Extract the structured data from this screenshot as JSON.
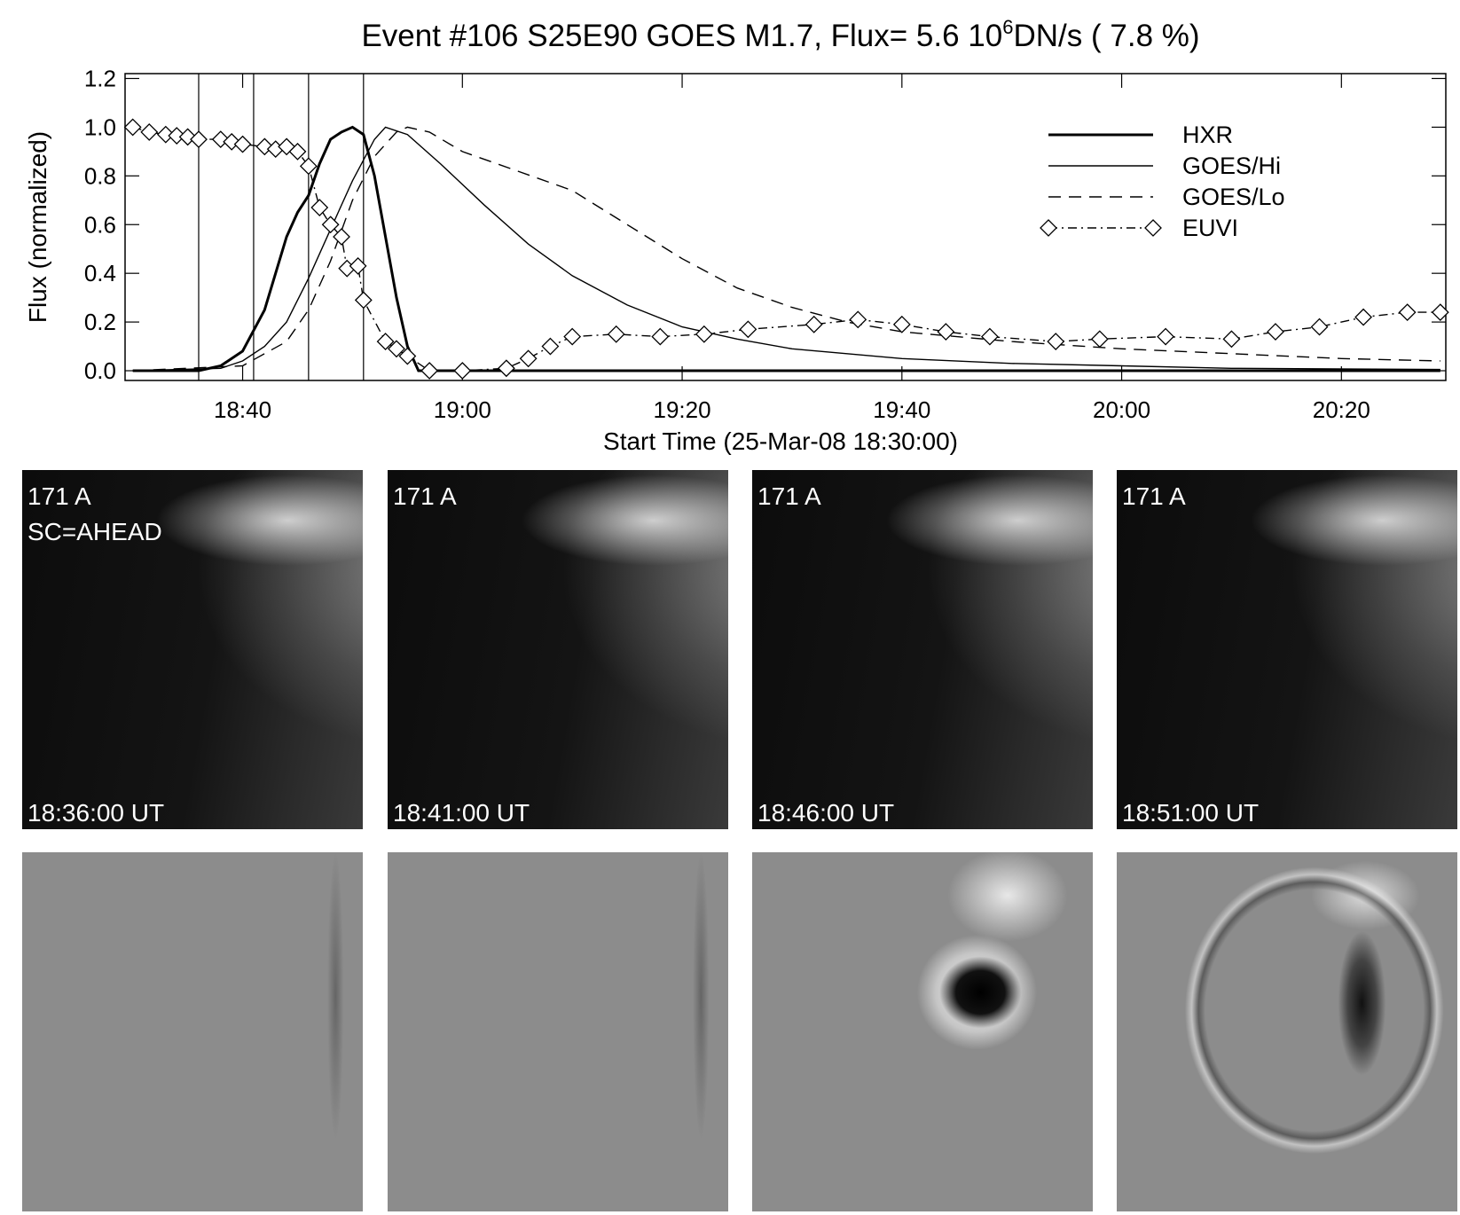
{
  "chart_data": {
    "type": "line",
    "title": {
      "main": "Event #106 S25E90 GOES M1.7, Flux=  5.6 10",
      "superscript": "6",
      "rest": "DN/s (  7.8 %)"
    },
    "x_label": "Start Time (25-Mar-08 18:30:00)",
    "y_label": "Flux (normalized)",
    "xlim": [
      -0.7,
      119.5
    ],
    "ylim": [
      -0.04,
      1.22
    ],
    "xticks": [
      {
        "value": 10,
        "label": "18:40"
      },
      {
        "value": 30,
        "label": "19:00"
      },
      {
        "value": 50,
        "label": "19:20"
      },
      {
        "value": 70,
        "label": "19:40"
      },
      {
        "value": 90,
        "label": "20:00"
      },
      {
        "value": 110,
        "label": "20:20"
      }
    ],
    "yticks": [
      {
        "value": 0,
        "label": "0.0"
      },
      0.2,
      0.4,
      0.6,
      0.8,
      {
        "value": 1,
        "label": "1.0"
      },
      1.2
    ],
    "markers": [
      6,
      11,
      16,
      21
    ],
    "legend": "upper right",
    "series": [
      {
        "name": "HXR",
        "color": "#000000",
        "style": "thick",
        "x": [
          0,
          6,
          8,
          10,
          12,
          13,
          14,
          15,
          16,
          17,
          18,
          19,
          20,
          21,
          22,
          23,
          24,
          25,
          26,
          119
        ],
        "values": [
          0,
          0,
          0.02,
          0.08,
          0.25,
          0.4,
          0.55,
          0.65,
          0.72,
          0.85,
          0.95,
          0.98,
          1.0,
          0.97,
          0.8,
          0.55,
          0.3,
          0.1,
          0,
          0
        ]
      },
      {
        "name": "GOES/Hi",
        "color": "#000000",
        "style": "solid",
        "x": [
          0,
          8,
          10,
          12,
          14,
          16,
          18,
          20,
          22,
          23,
          25,
          28,
          32,
          36,
          40,
          45,
          50,
          55,
          60,
          70,
          80,
          90,
          100,
          119
        ],
        "values": [
          0,
          0.01,
          0.04,
          0.1,
          0.2,
          0.38,
          0.58,
          0.78,
          0.95,
          1.0,
          0.97,
          0.85,
          0.68,
          0.52,
          0.39,
          0.27,
          0.18,
          0.13,
          0.09,
          0.05,
          0.03,
          0.02,
          0.01,
          0.005
        ]
      },
      {
        "name": "GOES/Lo",
        "color": "#000000",
        "style": "dashed",
        "x": [
          0,
          10,
          14,
          16,
          18,
          20,
          22,
          24,
          25,
          27,
          30,
          35,
          40,
          45,
          50,
          55,
          60,
          65,
          70,
          80,
          90,
          100,
          110,
          119
        ],
        "values": [
          0,
          0.02,
          0.12,
          0.25,
          0.45,
          0.7,
          0.88,
          0.98,
          1.0,
          0.98,
          0.9,
          0.82,
          0.74,
          0.6,
          0.46,
          0.34,
          0.26,
          0.2,
          0.16,
          0.12,
          0.09,
          0.07,
          0.05,
          0.04
        ]
      },
      {
        "name": "EUVI",
        "color": "#000000",
        "style": "dashdot-diamond",
        "x": [
          0,
          1.5,
          3,
          4,
          5,
          6,
          8,
          9,
          10,
          12,
          13,
          14,
          15,
          16,
          17,
          18,
          19,
          19.5,
          20.5,
          21,
          23,
          24,
          25,
          27,
          30,
          34,
          36,
          38,
          40,
          44,
          48,
          52,
          56,
          62,
          66,
          70,
          74,
          78,
          84,
          88,
          94,
          100,
          104,
          108,
          112,
          116,
          119
        ],
        "values": [
          1.0,
          0.98,
          0.97,
          0.965,
          0.96,
          0.95,
          0.95,
          0.94,
          0.93,
          0.92,
          0.91,
          0.92,
          0.9,
          0.84,
          0.67,
          0.6,
          0.55,
          0.42,
          0.43,
          0.29,
          0.12,
          0.09,
          0.06,
          0,
          0,
          0.01,
          0.05,
          0.1,
          0.14,
          0.15,
          0.14,
          0.15,
          0.17,
          0.19,
          0.21,
          0.19,
          0.16,
          0.14,
          0.12,
          0.13,
          0.14,
          0.13,
          0.16,
          0.18,
          0.22,
          0.24,
          0.24
        ]
      }
    ]
  },
  "images": {
    "top": [
      {
        "wavelength": "171 A",
        "spacecraft": "SC=AHEAD",
        "time": "18:36:00 UT"
      },
      {
        "wavelength": "171 A",
        "time": "18:41:00 UT"
      },
      {
        "wavelength": "171 A",
        "time": "18:46:00 UT"
      },
      {
        "wavelength": "171 A",
        "time": "18:51:00 UT"
      }
    ]
  }
}
